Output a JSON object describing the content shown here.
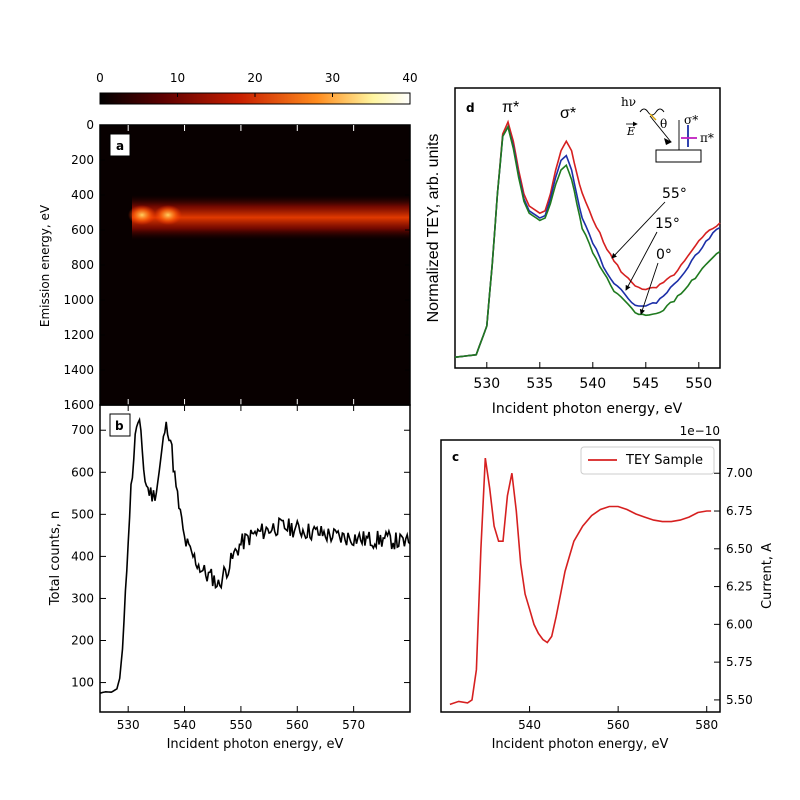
{
  "chart_data": [
    {
      "id": "colorbar",
      "type": "heatmap",
      "ticks": [
        "0",
        "10",
        "20",
        "30",
        "40"
      ],
      "range": [
        0,
        40
      ],
      "colors": [
        "#000000",
        "#5c0000",
        "#c81e00",
        "#ff8c1e",
        "#fff5a0",
        "#ffffff"
      ]
    },
    {
      "id": "a",
      "type": "heatmap",
      "label": "a",
      "ylabel": "Emission energy, eV",
      "yticks": [
        "0",
        "200",
        "400",
        "600",
        "800",
        "1000",
        "1200",
        "1400",
        "1600"
      ],
      "ylim": [
        1600,
        0
      ],
      "xlim": [
        525,
        580
      ],
      "band_center_ev": 540,
      "band_start_x": 530
    },
    {
      "id": "b",
      "type": "line",
      "label": "b",
      "xlabel": "Incident photon energy, eV",
      "ylabel": "Total counts, n",
      "xticks": [
        "530",
        "540",
        "550",
        "560",
        "570"
      ],
      "yticks": [
        "100",
        "200",
        "300",
        "400",
        "500",
        "600",
        "700"
      ],
      "xlim": [
        525,
        580
      ],
      "ylim": [
        30,
        760
      ],
      "series": [
        {
          "name": "Total counts",
          "color": "#000000",
          "points": [
            [
              525,
              75
            ],
            [
              526,
              78
            ],
            [
              527,
              77
            ],
            [
              528,
              85
            ],
            [
              528.5,
              110
            ],
            [
              529,
              180
            ],
            [
              529.5,
              300
            ],
            [
              530,
              450
            ],
            [
              530.5,
              560
            ],
            [
              531,
              640
            ],
            [
              531.5,
              715
            ],
            [
              532,
              710
            ],
            [
              532.5,
              650
            ],
            [
              533,
              580
            ],
            [
              533.5,
              560
            ],
            [
              534,
              550
            ],
            [
              534.5,
              545
            ],
            [
              535,
              560
            ],
            [
              535.5,
              600
            ],
            [
              536,
              650
            ],
            [
              536.5,
              700
            ],
            [
              537,
              710
            ],
            [
              537.5,
              680
            ],
            [
              538,
              620
            ],
            [
              538.5,
              560
            ],
            [
              539,
              520
            ],
            [
              539.5,
              480
            ],
            [
              540,
              440
            ],
            [
              541,
              410
            ],
            [
              542,
              390
            ],
            [
              543,
              370
            ],
            [
              544,
              355
            ],
            [
              545,
              350
            ],
            [
              546,
              330
            ],
            [
              547,
              360
            ],
            [
              548,
              380
            ],
            [
              549,
              410
            ],
            [
              550,
              430
            ],
            [
              552,
              450
            ],
            [
              554,
              460
            ],
            [
              556,
              470
            ],
            [
              558,
              470
            ],
            [
              560,
              465
            ],
            [
              562,
              460
            ],
            [
              564,
              455
            ],
            [
              566,
              450
            ],
            [
              568,
              445
            ],
            [
              570,
              445
            ],
            [
              572,
              440
            ],
            [
              574,
              440
            ],
            [
              576,
              440
            ],
            [
              578,
              435
            ],
            [
              580,
              430
            ]
          ]
        }
      ]
    },
    {
      "id": "c",
      "type": "line",
      "label": "c",
      "xlabel": "Incident photon energy, eV",
      "ylabel": "Current, A",
      "offset_label": "1e−10",
      "xticks": [
        "540",
        "560",
        "580"
      ],
      "yticks": [
        "5.50",
        "5.75",
        "6.00",
        "6.25",
        "6.50",
        "6.75",
        "7.00"
      ],
      "xlim": [
        520,
        583
      ],
      "ylim": [
        5.42,
        7.22
      ],
      "legend": "TEY Sample",
      "legend_position": "top-right",
      "series": [
        {
          "name": "TEY Sample",
          "color": "#d62020",
          "points": [
            [
              522,
              5.47
            ],
            [
              524,
              5.49
            ],
            [
              526,
              5.48
            ],
            [
              527,
              5.5
            ],
            [
              528,
              5.7
            ],
            [
              529,
              6.5
            ],
            [
              530,
              7.1
            ],
            [
              531,
              6.9
            ],
            [
              532,
              6.65
            ],
            [
              533,
              6.55
            ],
            [
              534,
              6.55
            ],
            [
              535,
              6.85
            ],
            [
              536,
              7.0
            ],
            [
              537,
              6.75
            ],
            [
              538,
              6.4
            ],
            [
              539,
              6.2
            ],
            [
              540,
              6.1
            ],
            [
              541,
              6.0
            ],
            [
              542,
              5.94
            ],
            [
              543,
              5.9
            ],
            [
              544,
              5.88
            ],
            [
              545,
              5.92
            ],
            [
              546,
              6.05
            ],
            [
              547,
              6.2
            ],
            [
              548,
              6.35
            ],
            [
              549,
              6.45
            ],
            [
              550,
              6.55
            ],
            [
              552,
              6.65
            ],
            [
              554,
              6.72
            ],
            [
              556,
              6.76
            ],
            [
              558,
              6.78
            ],
            [
              560,
              6.78
            ],
            [
              562,
              6.76
            ],
            [
              564,
              6.73
            ],
            [
              566,
              6.71
            ],
            [
              568,
              6.69
            ],
            [
              570,
              6.68
            ],
            [
              572,
              6.68
            ],
            [
              574,
              6.69
            ],
            [
              576,
              6.71
            ],
            [
              578,
              6.74
            ],
            [
              580,
              6.75
            ],
            [
              581,
              6.75
            ]
          ]
        }
      ]
    },
    {
      "id": "d",
      "type": "line",
      "label": "d",
      "xlabel": "Incident photon energy, eV",
      "ylabel": "Normalized TEY, arb. units",
      "xticks": [
        "530",
        "535",
        "540",
        "545",
        "550"
      ],
      "xlim": [
        527,
        552
      ],
      "ylim": [
        0,
        1.1
      ],
      "annotations": [
        "π*",
        "σ*",
        "55°",
        "15°",
        "0°",
        "hν",
        "θ",
        "E",
        "σ*",
        "π*"
      ],
      "series": [
        {
          "name": "55°",
          "color": "#d62020",
          "points": [
            [
              527,
              0.02
            ],
            [
              529,
              0.03
            ],
            [
              530,
              0.15
            ],
            [
              530.5,
              0.4
            ],
            [
              531,
              0.7
            ],
            [
              531.5,
              0.95
            ],
            [
              532,
              1.0
            ],
            [
              532.5,
              0.92
            ],
            [
              533,
              0.8
            ],
            [
              533.5,
              0.7
            ],
            [
              534,
              0.65
            ],
            [
              535,
              0.62
            ],
            [
              535.5,
              0.63
            ],
            [
              536,
              0.7
            ],
            [
              536.5,
              0.8
            ],
            [
              537,
              0.88
            ],
            [
              537.5,
              0.92
            ],
            [
              538,
              0.88
            ],
            [
              538.5,
              0.78
            ],
            [
              539,
              0.7
            ],
            [
              540,
              0.6
            ],
            [
              541,
              0.5
            ],
            [
              542,
              0.42
            ],
            [
              543,
              0.36
            ],
            [
              544,
              0.32
            ],
            [
              545,
              0.3
            ],
            [
              546,
              0.31
            ],
            [
              547,
              0.34
            ],
            [
              548,
              0.38
            ],
            [
              549,
              0.44
            ],
            [
              550,
              0.5
            ],
            [
              551,
              0.55
            ],
            [
              552,
              0.58
            ]
          ]
        },
        {
          "name": "15°",
          "color": "#1c2fa8",
          "points": [
            [
              527,
              0.02
            ],
            [
              529,
              0.03
            ],
            [
              530,
              0.15
            ],
            [
              530.5,
              0.4
            ],
            [
              531,
              0.7
            ],
            [
              531.5,
              0.94
            ],
            [
              532,
              0.98
            ],
            [
              532.5,
              0.9
            ],
            [
              533,
              0.78
            ],
            [
              533.5,
              0.68
            ],
            [
              534,
              0.63
            ],
            [
              535,
              0.6
            ],
            [
              535.5,
              0.61
            ],
            [
              536,
              0.68
            ],
            [
              536.5,
              0.77
            ],
            [
              537,
              0.84
            ],
            [
              537.5,
              0.86
            ],
            [
              538,
              0.8
            ],
            [
              538.5,
              0.7
            ],
            [
              539,
              0.6
            ],
            [
              540,
              0.5
            ],
            [
              541,
              0.4
            ],
            [
              542,
              0.33
            ],
            [
              543,
              0.28
            ],
            [
              544,
              0.24
            ],
            [
              545,
              0.23
            ],
            [
              546,
              0.25
            ],
            [
              547,
              0.29
            ],
            [
              548,
              0.34
            ],
            [
              549,
              0.4
            ],
            [
              550,
              0.46
            ],
            [
              551,
              0.52
            ],
            [
              552,
              0.56
            ]
          ]
        },
        {
          "name": "0°",
          "color": "#1f7a1f",
          "points": [
            [
              527,
              0.02
            ],
            [
              529,
              0.03
            ],
            [
              530,
              0.15
            ],
            [
              530.5,
              0.4
            ],
            [
              531,
              0.7
            ],
            [
              531.5,
              0.94
            ],
            [
              532,
              0.98
            ],
            [
              532.5,
              0.89
            ],
            [
              533,
              0.77
            ],
            [
              533.5,
              0.67
            ],
            [
              534,
              0.62
            ],
            [
              535,
              0.59
            ],
            [
              535.5,
              0.6
            ],
            [
              536,
              0.66
            ],
            [
              536.5,
              0.74
            ],
            [
              537,
              0.8
            ],
            [
              537.5,
              0.82
            ],
            [
              538,
              0.76
            ],
            [
              538.5,
              0.66
            ],
            [
              539,
              0.56
            ],
            [
              540,
              0.46
            ],
            [
              541,
              0.37
            ],
            [
              542,
              0.3
            ],
            [
              543,
              0.25
            ],
            [
              544,
              0.21
            ],
            [
              545,
              0.19
            ],
            [
              546,
              0.2
            ],
            [
              547,
              0.23
            ],
            [
              548,
              0.27
            ],
            [
              549,
              0.32
            ],
            [
              550,
              0.37
            ],
            [
              551,
              0.42
            ],
            [
              552,
              0.46
            ]
          ]
        }
      ]
    }
  ]
}
